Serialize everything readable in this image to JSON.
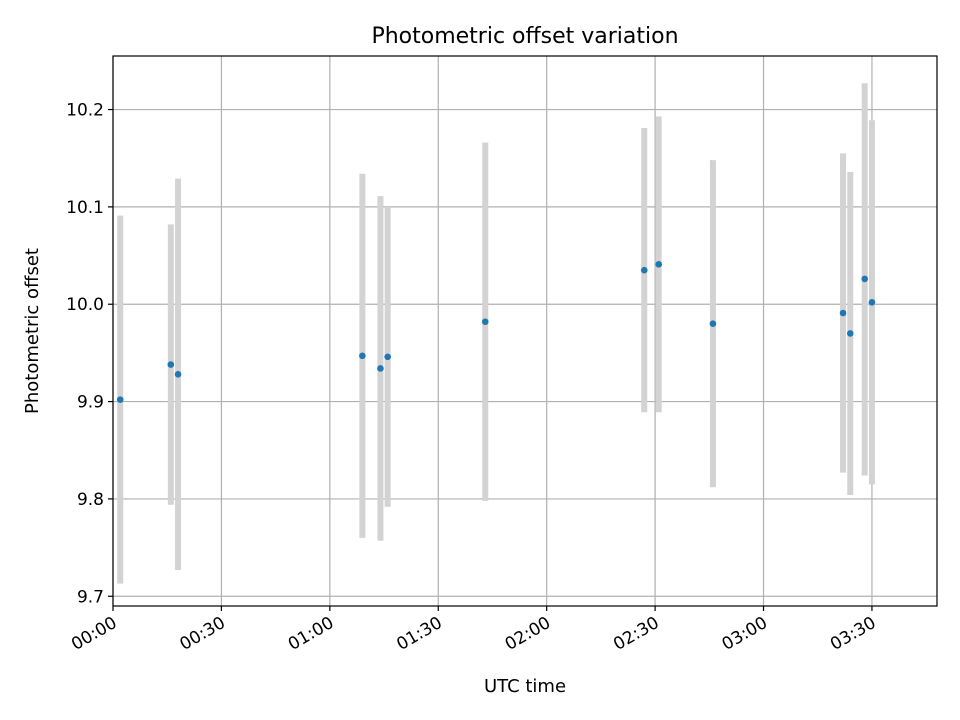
{
  "chart_data": {
    "type": "scatter",
    "title": "Photometric offset variation",
    "xlabel": "UTC time",
    "ylabel": "Photometric offset",
    "xlim": [
      "00:00",
      "03:48"
    ],
    "ylim": [
      9.69,
      10.255
    ],
    "grid": true,
    "x_ticks": [
      "00:00",
      "00:30",
      "01:00",
      "01:30",
      "02:00",
      "02:30",
      "03:00",
      "03:30"
    ],
    "y_ticks": [
      "9.7",
      "9.8",
      "9.9",
      "10.0",
      "10.1",
      "10.2"
    ],
    "series": [
      {
        "marker_color": "#1f77b4",
        "errorbar_color": "#d3d3d3",
        "points": [
          {
            "t": "00:02",
            "y": 9.902,
            "low": 9.713,
            "high": 10.091
          },
          {
            "t": "00:16",
            "y": 9.938,
            "low": 9.794,
            "high": 10.082
          },
          {
            "t": "00:18",
            "y": 9.928,
            "low": 9.727,
            "high": 10.129
          },
          {
            "t": "01:09",
            "y": 9.947,
            "low": 9.76,
            "high": 10.134
          },
          {
            "t": "01:14",
            "y": 9.934,
            "low": 9.757,
            "high": 10.111
          },
          {
            "t": "01:16",
            "y": 9.946,
            "low": 9.792,
            "high": 10.1
          },
          {
            "t": "01:43",
            "y": 9.982,
            "low": 9.798,
            "high": 10.166
          },
          {
            "t": "02:27",
            "y": 10.035,
            "low": 9.889,
            "high": 10.181
          },
          {
            "t": "02:31",
            "y": 10.041,
            "low": 9.889,
            "high": 10.193
          },
          {
            "t": "02:46",
            "y": 9.98,
            "low": 9.812,
            "high": 10.148
          },
          {
            "t": "03:22",
            "y": 9.991,
            "low": 9.827,
            "high": 10.155
          },
          {
            "t": "03:24",
            "y": 9.97,
            "low": 9.804,
            "high": 10.136
          },
          {
            "t": "03:28",
            "y": 10.026,
            "low": 9.824,
            "high": 10.227
          },
          {
            "t": "03:30",
            "y": 10.002,
            "low": 9.815,
            "high": 10.189
          }
        ]
      }
    ]
  }
}
